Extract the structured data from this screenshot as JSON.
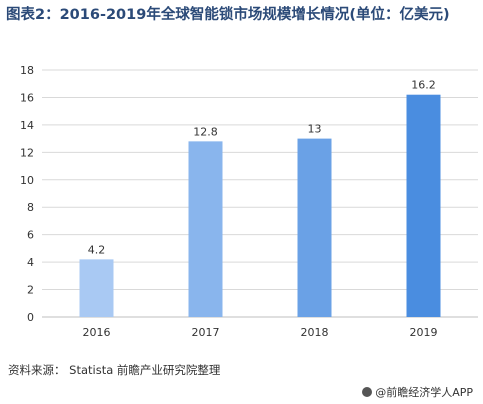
{
  "title": "图表2：2016-2019年全球智能锁市场规模增长情况(单位：亿美元)",
  "source": "资料来源： Statista 前瞻产业研究院整理",
  "brand": "@前瞻经济学人APP",
  "colors": {
    "bar_start": "#a9c9f3",
    "bar_end": "#4a8de0",
    "grid": "#d9d9d9",
    "axis": "#bfbfbf"
  },
  "chart_data": {
    "type": "bar",
    "title": "图表2：2016-2019年全球智能锁市场规模增长情况(单位：亿美元)",
    "categories": [
      "2016",
      "2017",
      "2018",
      "2019"
    ],
    "values": [
      4.2,
      12.8,
      13,
      16.2
    ],
    "data_labels": [
      "4.2",
      "12.8",
      "13",
      "16.2"
    ],
    "xlabel": "",
    "ylabel": "",
    "ylim": [
      0,
      18
    ],
    "yticks": [
      "0",
      "2",
      "4",
      "6",
      "8",
      "10",
      "12",
      "14",
      "16",
      "18"
    ],
    "grid": true,
    "legend": "none"
  }
}
